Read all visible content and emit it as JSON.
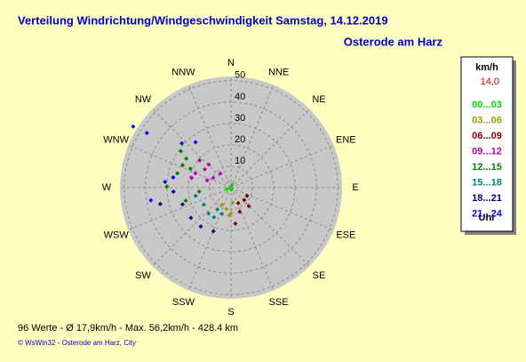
{
  "chart_data": {
    "type": "polar_scatter",
    "title": "Verteilung Windrichtung/Windgeschwindigkeit  Samstag, 14.12.2019",
    "subtitle": "Osterode am Harz",
    "directions": [
      "N",
      "NNE",
      "NE",
      "ENE",
      "E",
      "ESE",
      "SE",
      "SSE",
      "S",
      "SSW",
      "SW",
      "WSW",
      "W",
      "WNW",
      "NW",
      "NNW"
    ],
    "rlim": [
      0,
      52
    ],
    "rticks": [
      10,
      20,
      30,
      40,
      50
    ],
    "legend_title": "km/h",
    "legend_current": "14,0",
    "legend_footer": "Uhr",
    "footer": "96 Werte   -   Ø 17,9km/h  -  Max. 56,2km/h   -   428.4 km",
    "credit": "© WsWin32  -  Osterode am Harz, City",
    "series": [
      {
        "name": "00...03",
        "color": "#00e000",
        "direction": [
          20,
          170,
          250
        ],
        "values": [
          1.5,
          1,
          2
        ]
      },
      {
        "name": "03...06",
        "color": "#a0a000",
        "direction": [
          192,
          180,
          208,
          173,
          184
        ],
        "values": [
          10.2,
          12,
          9,
          7,
          13
        ]
      },
      {
        "name": "06...09",
        "color": "#800000",
        "direction": [
          133,
          136,
          160,
          173,
          155,
          117
        ],
        "values": [
          8.5,
          12,
          12,
          17,
          8,
          8.4
        ]
      },
      {
        "name": "09...12",
        "color": "#b000b0",
        "direction": [
          299,
          305,
          311,
          316,
          323,
          284,
          292,
          287
        ],
        "values": [
          9.5,
          15,
          19.5,
          15,
          8.3,
          19,
          18,
          11.7
        ]
      },
      {
        "name": "12...15",
        "color": "#008000",
        "direction": [
          295,
          303,
          295,
          271,
          285,
          263,
          254,
          306
        ],
        "values": [
          25,
          25,
          21,
          30,
          26,
          15,
          22,
          29
        ]
      },
      {
        "name": "15...18",
        "color": "#008080",
        "direction": [
          221,
          212,
          238,
          210,
          199,
          257
        ],
        "values": [
          16,
          12,
          15,
          16,
          13,
          17
        ]
      },
      {
        "name": "18...21",
        "color": "#000080",
        "direction": [
          218,
          202,
          251,
          266,
          233,
          257
        ],
        "values": [
          23,
          22,
          24,
          27,
          23.5,
          34
        ]
      },
      {
        "name": "21...24",
        "color": "#0000ff",
        "direction": [
          302,
          303,
          312,
          280,
          275,
          261,
          322
        ],
        "values": [
          54,
          47,
          31,
          27.5,
          31,
          38,
          27
        ]
      }
    ]
  }
}
